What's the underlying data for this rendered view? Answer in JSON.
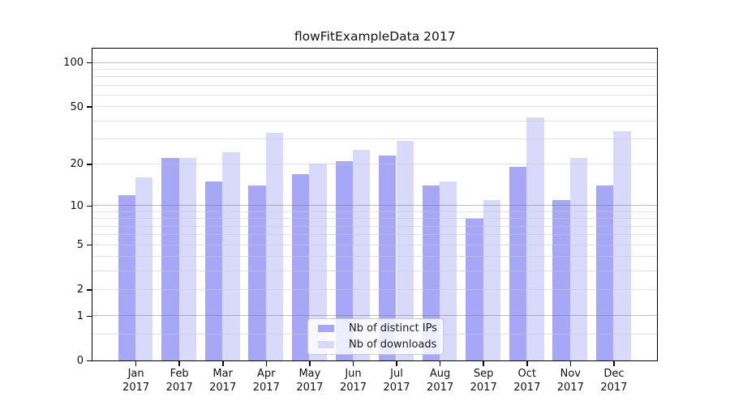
{
  "chart_data": {
    "type": "bar",
    "title": "flowFitExampleData 2017",
    "months": [
      "Jan",
      "Feb",
      "Mar",
      "Apr",
      "May",
      "Jun",
      "Jul",
      "Aug",
      "Sep",
      "Oct",
      "Nov",
      "Dec"
    ],
    "xtick_year": "2017",
    "categories": [
      "Jan 2017",
      "Feb 2017",
      "Mar 2017",
      "Apr 2017",
      "May 2017",
      "Jun 2017",
      "Jul 2017",
      "Aug 2017",
      "Sep 2017",
      "Oct 2017",
      "Nov 2017",
      "Dec 2017"
    ],
    "series": [
      {
        "name": "Nb of distinct IPs",
        "color": "#a7a7f7",
        "values": [
          12,
          22,
          15,
          14,
          17,
          21,
          23,
          14,
          8,
          19,
          11,
          14
        ]
      },
      {
        "name": "Nb of downloads",
        "color": "#d9d9fb",
        "values": [
          16,
          22,
          24,
          33,
          20,
          25,
          29,
          15,
          11,
          42,
          22,
          34
        ]
      }
    ],
    "yscale": "log1p",
    "ylim": [
      0,
      125
    ],
    "yticks": [
      0,
      1,
      2,
      5,
      10,
      20,
      50,
      100
    ],
    "gridlines": {
      "major": [
        1,
        10,
        100
      ],
      "minor": [
        0.5,
        2,
        3,
        4,
        5,
        6,
        7,
        8,
        9,
        20,
        30,
        40,
        50,
        60,
        70,
        80,
        90
      ]
    },
    "legend": {
      "entries": [
        "Nb of distinct IPs",
        "Nb of downloads"
      ],
      "position": "lower center"
    }
  }
}
